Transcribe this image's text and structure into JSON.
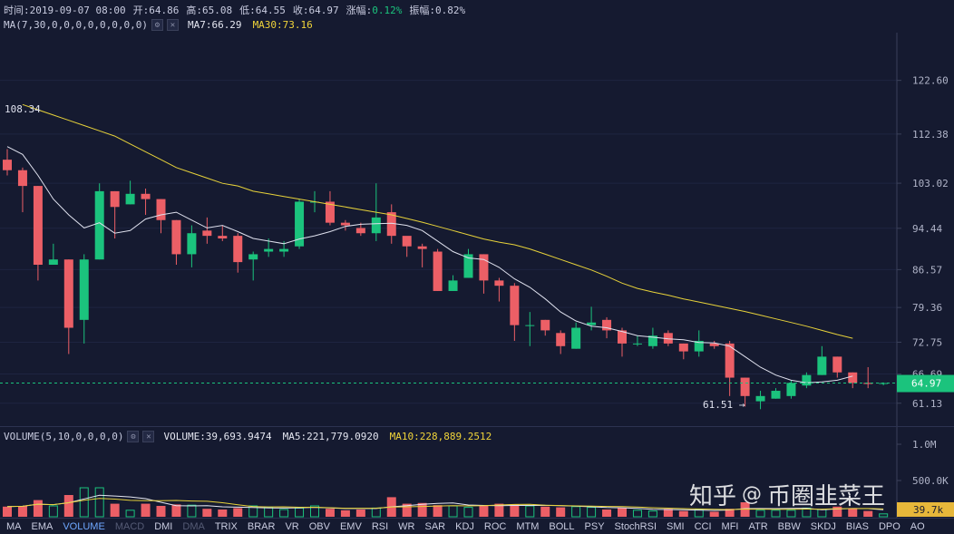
{
  "info": {
    "time_label": "时间:2019-09-07 08:00",
    "open_label": "开:64.86",
    "high_label": "高:65.08",
    "low_label": "低:64.55",
    "close_label": "收:64.97",
    "change_label": "涨幅:",
    "change_value": "0.12%",
    "amp_label": "振幅:0.82%"
  },
  "ma_row": {
    "title": "MA(7,30,0,0,0,0,0,0,0,0)",
    "ma7": "MA7:66.29",
    "ma30": "MA30:73.16"
  },
  "price_axis": {
    "ticks": [
      "122.60",
      "112.38",
      "103.02",
      "94.44",
      "86.57",
      "79.36",
      "72.75",
      "66.69",
      "61.13"
    ],
    "last_price": "64.97"
  },
  "annotations": {
    "high": "108.34",
    "low": "61.51 →"
  },
  "vol_row": {
    "title": "VOLUME(5,10,0,0,0,0)",
    "volume": "VOLUME:39,693.9474",
    "ma5": "MA5:221,779.0920",
    "ma10": "MA10:228,889.2512"
  },
  "vol_axis": {
    "ticks": [
      "1.0M",
      "500.0K"
    ],
    "last": "39.7k"
  },
  "watermark": {
    "brand": "知乎",
    "sep": "@",
    "author": "币圈韭菜王"
  },
  "indicator_tabs": [
    "MA",
    "EMA",
    "VOLUME",
    "MACD",
    "DMI",
    "DMA",
    "TRIX",
    "BRAR",
    "VR",
    "OBV",
    "EMV",
    "RSI",
    "WR",
    "SAR",
    "KDJ",
    "ROC",
    "MTM",
    "BOLL",
    "PSY",
    "StochRSI",
    "SMI",
    "CCI",
    "MFI",
    "ATR",
    "BBW",
    "SKDJ",
    "BIAS",
    "DPO",
    "AO"
  ],
  "active_tab": "VOLUME",
  "dim_tabs": [
    "MACD",
    "DMA"
  ],
  "colors": {
    "up": "#1bc37d",
    "down": "#ec5f66",
    "ma7": "#dfe1ee",
    "ma30": "#e7d23a",
    "background": "#151a30"
  },
  "chart_data": {
    "type": "candlestick",
    "last_time": "2019-09-07 08:00",
    "price_range": [
      58.5,
      131
    ],
    "candles": [
      [
        107.5,
        105.5,
        109.5,
        104.5
      ],
      [
        105.5,
        102.5,
        106,
        97.5
      ],
      [
        102.5,
        87.5,
        102.5,
        84.5
      ],
      [
        87.5,
        88.5,
        91.5,
        87.5
      ],
      [
        88.5,
        75.5,
        88.5,
        70.5
      ],
      [
        77,
        88.5,
        89.5,
        72.5
      ],
      [
        88.5,
        101.5,
        103,
        88.5
      ],
      [
        101.5,
        98.5,
        101.5,
        92.5
      ],
      [
        99,
        101,
        103.5,
        99
      ],
      [
        101,
        100,
        102,
        97
      ],
      [
        100,
        96,
        100,
        93.5
      ],
      [
        96,
        89.5,
        96,
        87.5
      ],
      [
        89.5,
        93.5,
        95,
        87
      ],
      [
        94,
        93,
        96.5,
        91.5
      ],
      [
        93,
        92.5,
        95,
        92
      ],
      [
        93,
        88,
        93.5,
        86
      ],
      [
        88.5,
        89.5,
        90,
        84.5
      ],
      [
        90,
        90.5,
        92.5,
        89
      ],
      [
        90,
        90.5,
        92,
        89
      ],
      [
        91,
        99.5,
        100,
        90.5
      ],
      [
        99.5,
        99.5,
        101.5,
        97.5
      ],
      [
        99.5,
        95.5,
        101.5,
        95
      ],
      [
        95.5,
        95,
        96,
        94
      ],
      [
        94.5,
        93.5,
        95.5,
        93
      ],
      [
        93.5,
        96.5,
        103,
        92
      ],
      [
        97.5,
        93,
        99,
        91.5
      ],
      [
        93,
        91,
        92.5,
        89
      ],
      [
        91,
        90.5,
        91.5,
        87
      ],
      [
        90,
        82.5,
        90.5,
        82.5
      ],
      [
        82.5,
        84.5,
        85.5,
        82.5
      ],
      [
        85,
        89.5,
        90.5,
        85
      ],
      [
        89.5,
        84.5,
        89.5,
        82
      ],
      [
        84.5,
        83.5,
        85,
        80.5
      ],
      [
        83.5,
        76,
        84,
        73
      ],
      [
        76,
        76,
        78.5,
        72
      ],
      [
        77,
        75,
        77,
        74
      ],
      [
        74.5,
        72,
        75,
        70.5
      ],
      [
        71.5,
        75.5,
        76.5,
        71.5
      ],
      [
        76,
        76.5,
        79.5,
        75
      ],
      [
        77,
        75,
        77.5,
        73.5
      ],
      [
        75,
        72.5,
        75.5,
        70
      ],
      [
        72.5,
        72.5,
        74,
        72
      ],
      [
        72,
        74,
        75.5,
        71.5
      ],
      [
        74.5,
        72.5,
        75,
        72
      ],
      [
        72.5,
        71,
        72.5,
        69.5
      ],
      [
        71,
        73,
        75,
        70
      ],
      [
        72.5,
        72,
        73,
        71.5
      ],
      [
        72.5,
        66,
        73,
        62.5
      ],
      [
        66,
        62.5,
        66,
        60.5
      ],
      [
        61.5,
        62.5,
        63.5,
        60
      ],
      [
        62,
        63.5,
        64,
        62
      ],
      [
        62.5,
        65,
        65.5,
        62
      ],
      [
        64.5,
        66.5,
        67,
        64
      ],
      [
        66.5,
        70,
        72,
        66.5
      ],
      [
        70,
        67,
        70,
        66
      ],
      [
        67,
        65,
        67,
        64
      ],
      [
        65,
        64.8,
        68,
        64
      ],
      [
        64.86,
        64.97,
        65.08,
        64.55
      ]
    ],
    "ma7": [
      110,
      108.5,
      104.5,
      100,
      97,
      94.5,
      95.5,
      93.5,
      94,
      96.2,
      97,
      97.5,
      96,
      94.5,
      95,
      93.8,
      92.5,
      92,
      91.5,
      92.4,
      93,
      93.8,
      94.8,
      95.2,
      95.3,
      95.4,
      95,
      94,
      92,
      90,
      88.8,
      88.5,
      87,
      84.8,
      83.2,
      81,
      78.5,
      76.8,
      75.8,
      75.5,
      74.8,
      74,
      73.7,
      73.4,
      73.2,
      72.7,
      72.6,
      72,
      70,
      68,
      66.5,
      65.5,
      65,
      65.2,
      65.5,
      66.3
    ],
    "ma30_start_index": 1,
    "ma30": [
      118,
      117,
      116,
      115,
      114,
      113,
      112,
      110.5,
      109,
      107.5,
      106,
      105,
      104,
      103,
      102.5,
      101.5,
      101,
      100.5,
      100,
      99.5,
      99,
      98.5,
      98,
      97.5,
      97,
      96.3,
      95.6,
      94.8,
      94,
      93.2,
      92.4,
      91.8,
      91.3,
      90.5,
      89.5,
      88.5,
      87.5,
      86.5,
      85.3,
      84,
      83,
      82.3,
      81.7,
      81,
      80.4,
      79.8,
      79.2,
      78.6,
      77.9,
      77.2,
      76.5,
      75.8,
      75,
      74.2,
      73.5
    ],
    "volume": {
      "values": [
        140,
        150,
        230,
        150,
        300,
        400,
        400,
        180,
        90,
        180,
        150,
        170,
        160,
        110,
        100,
        120,
        150,
        130,
        100,
        120,
        150,
        110,
        90,
        100,
        120,
        270,
        180,
        190,
        160,
        150,
        130,
        150,
        180,
        170,
        150,
        140,
        130,
        140,
        130,
        100,
        120,
        90,
        80,
        110,
        80,
        100,
        70,
        110,
        200,
        90,
        90,
        90,
        120,
        100,
        140,
        120,
        80,
        40
      ],
      "max": 1000000,
      "last": 39693.9474,
      "ma5": 221779.092,
      "ma10": 228889.2512
    }
  }
}
